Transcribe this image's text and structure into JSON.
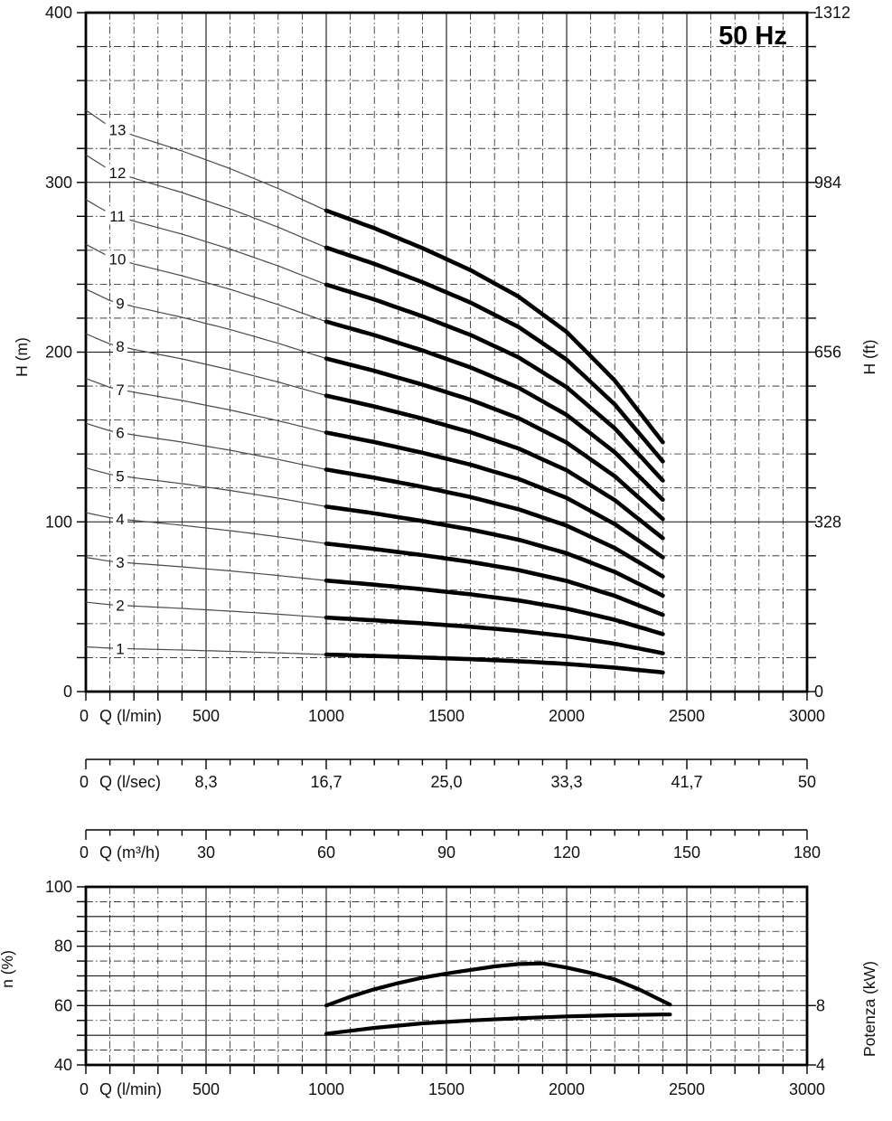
{
  "frequency_label": "50 Hz",
  "chart_data": [
    {
      "type": "line",
      "name": "head-flow-curves",
      "title": "50 Hz",
      "x_axis": {
        "label": "Q (l/min)",
        "min": 0,
        "max": 3000,
        "major_ticks": [
          0,
          500,
          1000,
          1500,
          2000,
          2500,
          3000
        ],
        "minor_step": 100
      },
      "y_axis_left": {
        "label": "H (m)",
        "min": 0,
        "max": 400,
        "major_ticks": [
          0,
          100,
          200,
          300,
          400
        ],
        "minor_step": 20
      },
      "y_axis_right": {
        "label": "H (ft)",
        "ticks": [
          {
            "label": "1312",
            "m": 400
          },
          {
            "label": "984",
            "m": 300
          },
          {
            "label": "656",
            "m": 200
          },
          {
            "label": "328",
            "m": 100
          },
          {
            "label": "0",
            "m": 0
          }
        ]
      },
      "stages": [
        1,
        2,
        3,
        4,
        5,
        6,
        7,
        8,
        9,
        10,
        11,
        12,
        13
      ],
      "per_stage_head": {
        "q": [
          0,
          100,
          200,
          400,
          600,
          800,
          1000,
          1200,
          1400,
          1600,
          1800,
          2000,
          2200,
          2400
        ],
        "h_m": [
          26.35,
          25.6,
          25.2,
          24.5,
          23.7,
          22.8,
          21.8,
          21.0,
          20.1,
          19.1,
          17.9,
          16.3,
          14.1,
          11.3
        ]
      },
      "thin_q_range": [
        0,
        1000
      ],
      "thick_q_range": [
        1000,
        2400
      ],
      "grid": "on",
      "legend": "stage numbers printed on curves"
    },
    {
      "type": "line",
      "name": "efficiency-and-power",
      "x_axis": {
        "label": "Q (l/min)",
        "min": 0,
        "max": 3000,
        "major_ticks": [
          0,
          500,
          1000,
          1500,
          2000,
          2500,
          3000
        ],
        "minor_step": 100
      },
      "y_axis_left": {
        "label": "n (%)",
        "min": 40,
        "max": 100,
        "major_ticks": [
          40,
          60,
          80,
          100
        ],
        "minor_step": 5
      },
      "y_axis_right": {
        "label": "Potenza (kW)",
        "ticks": [
          {
            "label": "8",
            "kw": 8
          },
          {
            "label": "4",
            "kw": 4
          }
        ],
        "kw_at_40pct": 4,
        "kw_per_20pct": 4
      },
      "efficiency": {
        "q": [
          1000,
          1100,
          1200,
          1300,
          1400,
          1500,
          1600,
          1700,
          1800,
          1900,
          2000,
          2100,
          2200,
          2300,
          2400,
          2430
        ],
        "pct": [
          60,
          63,
          65.5,
          67.6,
          69.4,
          70.8,
          72,
          73.2,
          74,
          74.2,
          72.8,
          71,
          68.8,
          65.5,
          61.5,
          60.3
        ]
      },
      "power": {
        "q": [
          1000,
          1200,
          1400,
          1600,
          1800,
          2000,
          2200,
          2400,
          2430
        ],
        "kw": [
          6.1,
          6.5,
          6.8,
          7.0,
          7.15,
          7.27,
          7.35,
          7.4,
          7.4
        ]
      },
      "grid": "on"
    }
  ],
  "rulers": [
    {
      "label": "Q (l/sec)",
      "tick_labels": [
        "0",
        "8,3",
        "16,7",
        "25,0",
        "33,3",
        "41,7",
        "50"
      ],
      "minor_per_major": 5
    },
    {
      "label": "Q (m³/h)",
      "tick_labels": [
        "0",
        "30",
        "60",
        "90",
        "120",
        "150",
        "180"
      ],
      "minor_per_major": 5
    }
  ]
}
